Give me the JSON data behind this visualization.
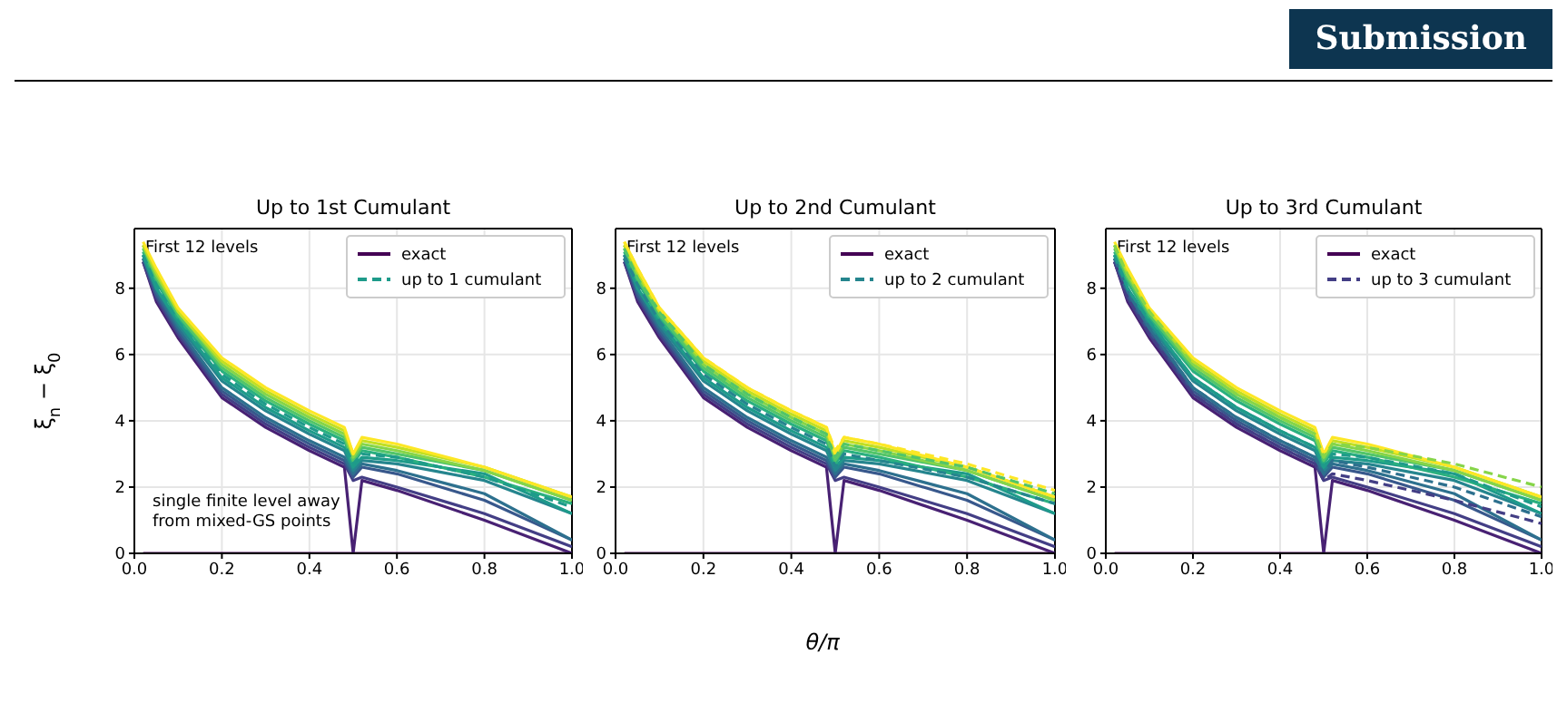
{
  "chart_data": [
    {
      "type": "line",
      "title": "Up to 1st Cumulant",
      "ylabel": "ξ$_{n}$ − ξ$_{0}$",
      "annotations": [
        "First 12 levels",
        "single finite level away\nfrom mixed-GS points"
      ],
      "grid": true,
      "legend": "top right",
      "xlim": [
        0,
        1
      ],
      "xticks": [
        {
          "value": 0,
          "label": "0.0"
        },
        {
          "value": 0.2,
          "label": "0.2"
        },
        {
          "value": 0.4,
          "label": "0.4"
        },
        {
          "value": 0.6,
          "label": "0.6"
        },
        {
          "value": 0.8,
          "label": "0.8"
        },
        {
          "value": 1,
          "label": "1.0"
        }
      ],
      "ylim": [
        0,
        9.8
      ],
      "yticks": [
        0,
        2,
        4,
        6,
        8
      ],
      "x": [
        0.02,
        0.05,
        0.1,
        0.2,
        0.3,
        0.4,
        0.48,
        0.5,
        0.52,
        0.6,
        0.8,
        1.0
      ],
      "series": [
        {
          "name": "exact",
          "color": "#440154",
          "line_style": "solid",
          "values": [
            0,
            0,
            0,
            0,
            0,
            0,
            0,
            0,
            0,
            0,
            0,
            0
          ]
        },
        {
          "color": "#482173",
          "line_style": "solid",
          "values": [
            8.8,
            7.6,
            6.5,
            4.7,
            3.8,
            3.1,
            2.6,
            0,
            2.2,
            1.9,
            1.0,
            0
          ]
        },
        {
          "color": "#433e85",
          "line_style": "solid",
          "values": [
            8.8,
            7.7,
            6.6,
            4.8,
            3.9,
            3.2,
            2.7,
            2.2,
            2.3,
            2.0,
            1.2,
            0.2
          ]
        },
        {
          "color": "#38588c",
          "line_style": "solid",
          "values": [
            8.9,
            7.8,
            6.7,
            4.9,
            4.0,
            3.3,
            2.8,
            2.3,
            2.6,
            2.4,
            1.6,
            0.4
          ]
        },
        {
          "color": "#2d708e",
          "line_style": "solid",
          "values": [
            8.9,
            7.9,
            6.8,
            5.0,
            4.1,
            3.4,
            2.9,
            2.4,
            2.7,
            2.5,
            1.8,
            0.4
          ]
        },
        {
          "color": "#25858e",
          "line_style": "solid",
          "values": [
            9.0,
            8.0,
            6.9,
            5.2,
            4.3,
            3.6,
            3.1,
            2.5,
            2.8,
            2.7,
            2.2,
            1.2
          ]
        },
        {
          "color": "#1e9b8a",
          "line_style": "solid",
          "values": [
            9.0,
            8.0,
            7.0,
            5.3,
            4.4,
            3.7,
            3.2,
            2.6,
            2.9,
            2.8,
            2.4,
            1.2
          ]
        },
        {
          "color": "#2ab07f",
          "line_style": "solid",
          "values": [
            9.1,
            8.2,
            7.1,
            5.5,
            4.6,
            3.9,
            3.4,
            2.7,
            3.1,
            2.9,
            2.3,
            1.5
          ]
        },
        {
          "color": "#52c569",
          "line_style": "solid",
          "values": [
            9.2,
            8.3,
            7.2,
            5.6,
            4.7,
            4.0,
            3.5,
            2.8,
            3.2,
            3.0,
            2.5,
            1.6
          ]
        },
        {
          "color": "#86d549",
          "line_style": "solid",
          "values": [
            9.3,
            8.4,
            7.3,
            5.7,
            4.8,
            4.1,
            3.6,
            2.9,
            3.3,
            3.1,
            2.5,
            1.6
          ]
        },
        {
          "color": "#c2df23",
          "line_style": "solid",
          "values": [
            9.3,
            8.5,
            7.3,
            5.8,
            4.9,
            4.2,
            3.7,
            3.0,
            3.4,
            3.2,
            2.6,
            1.7
          ]
        },
        {
          "color": "#fde725",
          "line_style": "solid",
          "values": [
            9.4,
            8.6,
            7.4,
            5.9,
            5.0,
            4.3,
            3.8,
            3.0,
            3.5,
            3.3,
            2.6,
            1.7
          ]
        },
        {
          "name": "up to 1 cumulant",
          "color": "#1e9b8a",
          "line_style": "dashed",
          "values": [
            9.0,
            8.1,
            7.0,
            5.4,
            4.5,
            3.8,
            3.3,
            2.7,
            3.0,
            2.9,
            2.3,
            1.4
          ]
        }
      ]
    },
    {
      "type": "line",
      "title": "Up to 2nd Cumulant",
      "xlabel": "θ/π",
      "annotations": [
        "First 12 levels"
      ],
      "grid": true,
      "legend": "top right",
      "xlim": [
        0,
        1
      ],
      "xticks": [
        {
          "value": 0,
          "label": "0.0"
        },
        {
          "value": 0.2,
          "label": "0.2"
        },
        {
          "value": 0.4,
          "label": "0.4"
        },
        {
          "value": 0.6,
          "label": "0.6"
        },
        {
          "value": 0.8,
          "label": "0.8"
        },
        {
          "value": 1,
          "label": "1.0"
        }
      ],
      "ylim": [
        0,
        9.8
      ],
      "yticks": [
        0,
        2,
        4,
        6,
        8
      ],
      "x": [
        0.02,
        0.05,
        0.1,
        0.2,
        0.3,
        0.4,
        0.48,
        0.5,
        0.52,
        0.6,
        0.8,
        1.0
      ],
      "series": [
        {
          "name": "exact",
          "color": "#440154",
          "line_style": "solid",
          "values": [
            0,
            0,
            0,
            0,
            0,
            0,
            0,
            0,
            0,
            0,
            0,
            0
          ]
        },
        {
          "color": "#482173",
          "line_style": "solid",
          "values": [
            8.8,
            7.6,
            6.5,
            4.7,
            3.8,
            3.1,
            2.6,
            0,
            2.2,
            1.9,
            1.0,
            0
          ]
        },
        {
          "color": "#433e85",
          "line_style": "solid",
          "values": [
            8.8,
            7.7,
            6.6,
            4.8,
            3.9,
            3.2,
            2.7,
            2.2,
            2.3,
            2.0,
            1.2,
            0.2
          ]
        },
        {
          "color": "#38588c",
          "line_style": "solid",
          "values": [
            8.9,
            7.8,
            6.7,
            4.9,
            4.0,
            3.3,
            2.8,
            2.3,
            2.6,
            2.4,
            1.6,
            0.4
          ]
        },
        {
          "color": "#2d708e",
          "line_style": "solid",
          "values": [
            8.9,
            7.9,
            6.8,
            5.0,
            4.1,
            3.4,
            2.9,
            2.4,
            2.7,
            2.5,
            1.8,
            0.4
          ]
        },
        {
          "color": "#25858e",
          "line_style": "solid",
          "values": [
            9.0,
            8.0,
            6.9,
            5.2,
            4.3,
            3.6,
            3.1,
            2.5,
            2.8,
            2.7,
            2.2,
            1.2
          ]
        },
        {
          "color": "#1e9b8a",
          "line_style": "solid",
          "values": [
            9.0,
            8.0,
            7.0,
            5.3,
            4.4,
            3.7,
            3.2,
            2.6,
            2.9,
            2.8,
            2.4,
            1.2
          ]
        },
        {
          "color": "#2ab07f",
          "line_style": "solid",
          "values": [
            9.1,
            8.2,
            7.1,
            5.5,
            4.6,
            3.9,
            3.4,
            2.7,
            3.1,
            2.9,
            2.3,
            1.5
          ]
        },
        {
          "color": "#52c569",
          "line_style": "solid",
          "values": [
            9.2,
            8.3,
            7.2,
            5.6,
            4.7,
            4.0,
            3.5,
            2.8,
            3.2,
            3.0,
            2.5,
            1.6
          ]
        },
        {
          "color": "#86d549",
          "line_style": "solid",
          "values": [
            9.3,
            8.4,
            7.3,
            5.7,
            4.8,
            4.1,
            3.6,
            2.9,
            3.3,
            3.1,
            2.5,
            1.6
          ]
        },
        {
          "color": "#c2df23",
          "line_style": "solid",
          "values": [
            9.3,
            8.5,
            7.3,
            5.8,
            4.9,
            4.2,
            3.7,
            3.0,
            3.4,
            3.2,
            2.6,
            1.7
          ]
        },
        {
          "color": "#fde725",
          "line_style": "solid",
          "values": [
            9.4,
            8.6,
            7.4,
            5.9,
            5.0,
            4.3,
            3.8,
            3.0,
            3.5,
            3.3,
            2.6,
            1.7
          ]
        },
        {
          "name": "up to 2 cumulant",
          "color": "#25858e",
          "line_style": "dashed",
          "values": [
            9.0,
            8.1,
            7.0,
            5.4,
            4.5,
            3.8,
            3.3,
            2.6,
            3.0,
            2.8,
            2.3,
            1.5
          ]
        },
        {
          "color": "#52c569",
          "line_style": "dashed",
          "values": [
            9.2,
            8.3,
            7.3,
            5.7,
            4.8,
            4.1,
            3.6,
            2.9,
            3.3,
            3.1,
            2.6,
            1.8
          ]
        },
        {
          "color": "#fde725",
          "line_style": "dashed",
          "values": [
            9.4,
            8.6,
            7.4,
            5.9,
            5.0,
            4.3,
            3.8,
            3.1,
            3.5,
            3.3,
            2.7,
            1.9
          ]
        }
      ]
    },
    {
      "type": "line",
      "title": "Up to 3rd Cumulant",
      "annotations": [
        "First 12 levels",
        "Submission"
      ],
      "grid": true,
      "legend": "top right",
      "xlim": [
        0,
        1
      ],
      "xticks": [
        {
          "value": 0,
          "label": "0.0"
        },
        {
          "value": 0.2,
          "label": "0.2"
        },
        {
          "value": 0.4,
          "label": "0.4"
        },
        {
          "value": 0.6,
          "label": "0.6"
        },
        {
          "value": 0.8,
          "label": "0.8"
        },
        {
          "value": 1,
          "label": "1.0"
        }
      ],
      "ylim": [
        0,
        9.8
      ],
      "yticks": [
        0,
        2,
        4,
        6,
        8
      ],
      "x": [
        0.02,
        0.05,
        0.1,
        0.2,
        0.3,
        0.4,
        0.48,
        0.5,
        0.52,
        0.6,
        0.8,
        1.0
      ],
      "series": [
        {
          "name": "exact",
          "color": "#440154",
          "line_style": "solid",
          "values": [
            0,
            0,
            0,
            0,
            0,
            0,
            0,
            0,
            0,
            0,
            0,
            0
          ]
        },
        {
          "color": "#482173",
          "line_style": "solid",
          "values": [
            8.8,
            7.6,
            6.5,
            4.7,
            3.8,
            3.1,
            2.6,
            0,
            2.2,
            1.9,
            1.0,
            0
          ]
        },
        {
          "color": "#433e85",
          "line_style": "solid",
          "values": [
            8.8,
            7.7,
            6.6,
            4.8,
            3.9,
            3.2,
            2.7,
            2.2,
            2.3,
            2.0,
            1.2,
            0.2
          ]
        },
        {
          "color": "#38588c",
          "line_style": "solid",
          "values": [
            8.9,
            7.8,
            6.7,
            4.9,
            4.0,
            3.3,
            2.8,
            2.3,
            2.6,
            2.4,
            1.6,
            0.4
          ]
        },
        {
          "color": "#2d708e",
          "line_style": "solid",
          "values": [
            8.9,
            7.9,
            6.8,
            5.0,
            4.1,
            3.4,
            2.9,
            2.4,
            2.7,
            2.5,
            1.8,
            0.4
          ]
        },
        {
          "color": "#25858e",
          "line_style": "solid",
          "values": [
            9.0,
            8.0,
            6.9,
            5.2,
            4.3,
            3.6,
            3.1,
            2.5,
            2.8,
            2.7,
            2.2,
            1.2
          ]
        },
        {
          "color": "#1e9b8a",
          "line_style": "solid",
          "values": [
            9.0,
            8.0,
            7.0,
            5.3,
            4.4,
            3.7,
            3.2,
            2.6,
            2.9,
            2.8,
            2.4,
            1.2
          ]
        },
        {
          "color": "#2ab07f",
          "line_style": "solid",
          "values": [
            9.1,
            8.2,
            7.1,
            5.5,
            4.6,
            3.9,
            3.4,
            2.7,
            3.1,
            2.9,
            2.3,
            1.5
          ]
        },
        {
          "color": "#52c569",
          "line_style": "solid",
          "values": [
            9.2,
            8.3,
            7.2,
            5.6,
            4.7,
            4.0,
            3.5,
            2.8,
            3.2,
            3.0,
            2.5,
            1.6
          ]
        },
        {
          "color": "#86d549",
          "line_style": "solid",
          "values": [
            9.3,
            8.4,
            7.3,
            5.7,
            4.8,
            4.1,
            3.6,
            2.9,
            3.3,
            3.1,
            2.5,
            1.6
          ]
        },
        {
          "color": "#c2df23",
          "line_style": "solid",
          "values": [
            9.3,
            8.5,
            7.3,
            5.8,
            4.9,
            4.2,
            3.7,
            3.0,
            3.4,
            3.2,
            2.6,
            1.7
          ]
        },
        {
          "color": "#fde725",
          "line_style": "solid",
          "values": [
            9.4,
            8.6,
            7.4,
            5.9,
            5.0,
            4.3,
            3.8,
            3.0,
            3.5,
            3.3,
            2.6,
            1.7
          ]
        },
        {
          "name": "up to 3 cumulant",
          "color": "#433e85",
          "line_style": "dashed",
          "values": [
            8.8,
            7.7,
            6.6,
            4.8,
            3.9,
            3.2,
            2.7,
            2.2,
            2.4,
            2.2,
            1.6,
            0.9
          ]
        },
        {
          "color": "#2d708e",
          "line_style": "dashed",
          "values": [
            8.9,
            7.9,
            6.8,
            5.0,
            4.1,
            3.4,
            2.9,
            2.4,
            2.8,
            2.6,
            2.0,
            1.1
          ]
        },
        {
          "color": "#1e9b8a",
          "line_style": "dashed",
          "values": [
            9.0,
            8.0,
            7.0,
            5.3,
            4.4,
            3.7,
            3.2,
            2.6,
            3.0,
            2.9,
            2.4,
            1.4
          ]
        },
        {
          "color": "#86d549",
          "line_style": "dashed",
          "values": [
            9.3,
            8.4,
            7.3,
            5.7,
            4.8,
            4.1,
            3.6,
            2.9,
            3.3,
            3.2,
            2.7,
            2.0
          ]
        }
      ]
    }
  ]
}
